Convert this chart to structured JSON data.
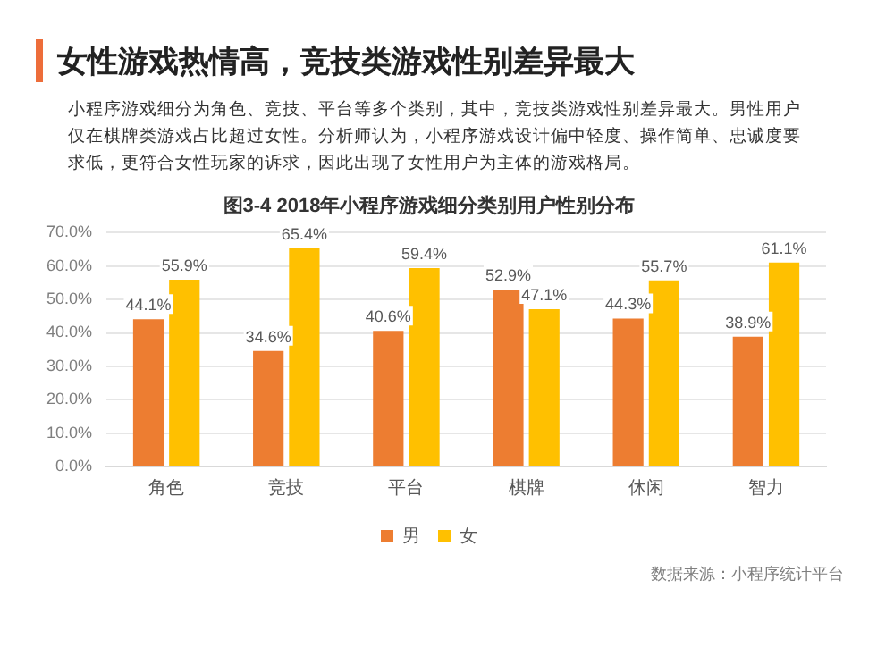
{
  "chart_data": {
    "type": "bar",
    "title": "女性游戏热情高，竞技类游戏性别差异最大",
    "subtitle": "图3-4 2018年小程序游戏细分类别用户性别分布",
    "annotations": [
      "小程序游戏细分为角色、竞技、平台等多个类别，其中，竞技类游戏性别差异最大。男性用户仅在棋牌类游戏占比超过女性。分析师认为，小程序游戏设计偏中轻度、操作简单、忠诚度要求低，更符合女性玩家的诉求，因此出现了女性用户为主体的游戏格局。",
      "数据来源：小程序统计平台"
    ],
    "categories": [
      "角色",
      "竞技",
      "平台",
      "棋牌",
      "休闲",
      "智力"
    ],
    "series": [
      {
        "name": "男",
        "color": "#ed7d31",
        "values": [
          44.1,
          34.6,
          40.6,
          52.9,
          44.3,
          38.9
        ],
        "value_labels": [
          "44.1%",
          "34.6%",
          "40.6%",
          "52.9%",
          "44.3%",
          "38.9%"
        ]
      },
      {
        "name": "女",
        "color": "#ffc000",
        "values": [
          55.9,
          65.4,
          59.4,
          47.1,
          55.7,
          61.1
        ],
        "value_labels": [
          "55.9%",
          "65.4%",
          "59.4%",
          "47.1%",
          "55.7%",
          "61.1%"
        ]
      }
    ],
    "ylim": [
      0,
      70
    ],
    "yticks": [
      {
        "value": 0,
        "label": "0.0%"
      },
      {
        "value": 10,
        "label": "10.0%"
      },
      {
        "value": 20,
        "label": "20.0%"
      },
      {
        "value": 30,
        "label": "30.0%"
      },
      {
        "value": 40,
        "label": "40.0%"
      },
      {
        "value": 50,
        "label": "50.0%"
      },
      {
        "value": 60,
        "label": "60.0%"
      },
      {
        "value": 70,
        "label": "70.0%"
      }
    ],
    "grid": "y",
    "legend": "bottom"
  }
}
